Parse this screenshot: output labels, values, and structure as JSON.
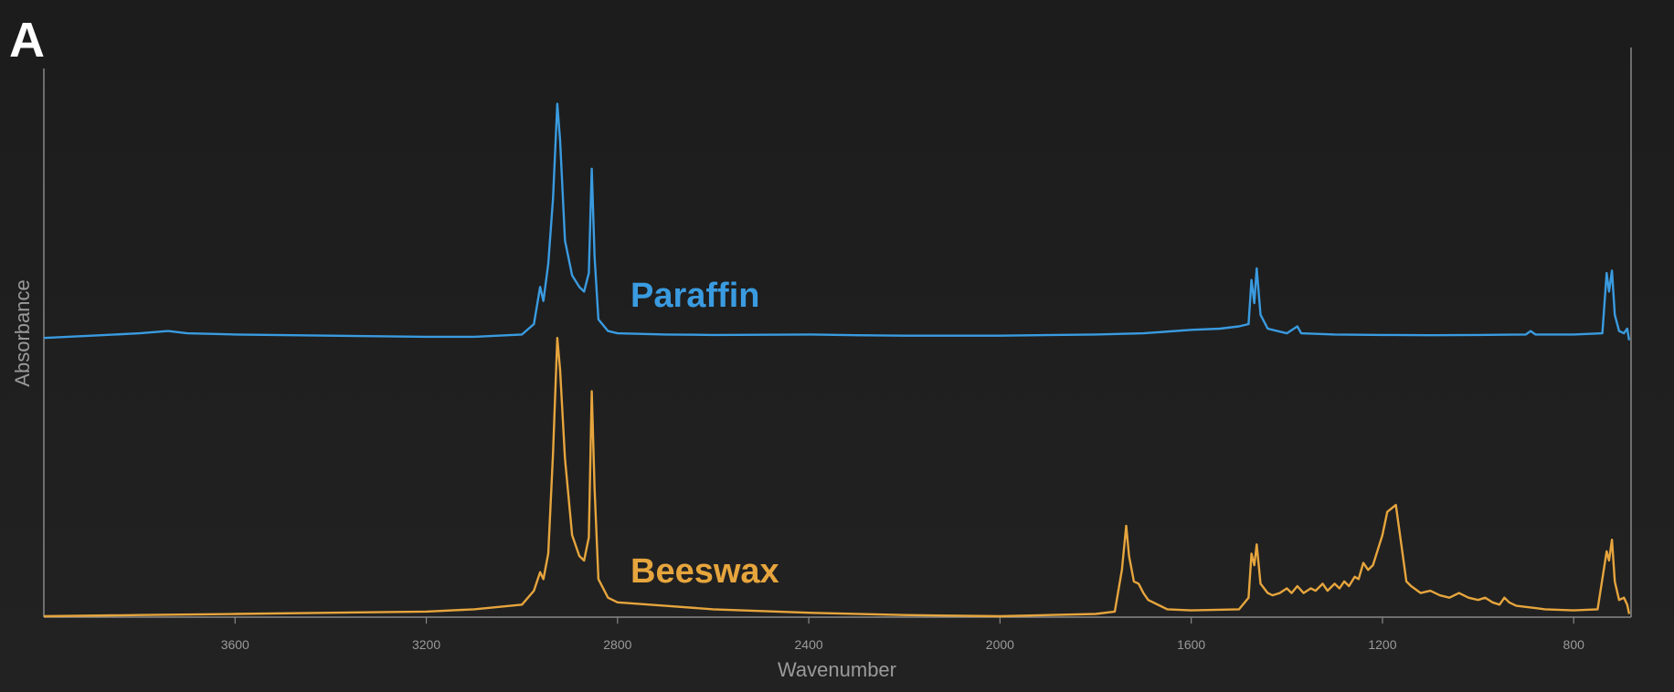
{
  "panel_label": "A",
  "chart_data": {
    "type": "line",
    "title": "",
    "xlabel": "Wavenumber",
    "ylabel": "Absorbance",
    "xlim": [
      4000,
      680
    ],
    "x_reversed": true,
    "x_ticks": [
      3600,
      3200,
      2800,
      2400,
      2000,
      1600,
      1200,
      800
    ],
    "y_ticks_shown": false,
    "grid": false,
    "legend": "inline labels",
    "series": [
      {
        "name": "Paraffin",
        "color": "#3a9be0",
        "points": [
          [
            4000,
            1.2
          ],
          [
            3900,
            1.21
          ],
          [
            3800,
            1.22
          ],
          [
            3740,
            1.23
          ],
          [
            3700,
            1.22
          ],
          [
            3600,
            1.215
          ],
          [
            3400,
            1.21
          ],
          [
            3200,
            1.205
          ],
          [
            3100,
            1.205
          ],
          [
            3000,
            1.215
          ],
          [
            2975,
            1.26
          ],
          [
            2962,
            1.42
          ],
          [
            2955,
            1.36
          ],
          [
            2945,
            1.52
          ],
          [
            2935,
            1.8
          ],
          [
            2926,
            2.21
          ],
          [
            2920,
            2.05
          ],
          [
            2910,
            1.62
          ],
          [
            2895,
            1.47
          ],
          [
            2880,
            1.42
          ],
          [
            2870,
            1.4
          ],
          [
            2860,
            1.48
          ],
          [
            2854,
            1.93
          ],
          [
            2848,
            1.55
          ],
          [
            2840,
            1.28
          ],
          [
            2820,
            1.23
          ],
          [
            2800,
            1.22
          ],
          [
            2700,
            1.215
          ],
          [
            2600,
            1.213
          ],
          [
            2400,
            1.215
          ],
          [
            2300,
            1.212
          ],
          [
            2200,
            1.21
          ],
          [
            2000,
            1.21
          ],
          [
            1800,
            1.215
          ],
          [
            1700,
            1.22
          ],
          [
            1600,
            1.235
          ],
          [
            1540,
            1.24
          ],
          [
            1500,
            1.25
          ],
          [
            1480,
            1.26
          ],
          [
            1474,
            1.45
          ],
          [
            1468,
            1.35
          ],
          [
            1463,
            1.5
          ],
          [
            1455,
            1.3
          ],
          [
            1440,
            1.24
          ],
          [
            1400,
            1.22
          ],
          [
            1378,
            1.25
          ],
          [
            1370,
            1.22
          ],
          [
            1300,
            1.215
          ],
          [
            1200,
            1.213
          ],
          [
            1100,
            1.212
          ],
          [
            1000,
            1.213
          ],
          [
            900,
            1.215
          ],
          [
            890,
            1.23
          ],
          [
            880,
            1.215
          ],
          [
            800,
            1.215
          ],
          [
            740,
            1.22
          ],
          [
            731,
            1.48
          ],
          [
            726,
            1.4
          ],
          [
            720,
            1.49
          ],
          [
            714,
            1.3
          ],
          [
            705,
            1.23
          ],
          [
            695,
            1.22
          ],
          [
            688,
            1.24
          ],
          [
            684,
            1.19
          ]
        ]
      },
      {
        "name": "Beeswax",
        "color": "#e6a53d",
        "points": [
          [
            4000,
            0.0
          ],
          [
            3800,
            0.005
          ],
          [
            3600,
            0.01
          ],
          [
            3400,
            0.015
          ],
          [
            3200,
            0.02
          ],
          [
            3100,
            0.03
          ],
          [
            3000,
            0.05
          ],
          [
            2975,
            0.11
          ],
          [
            2962,
            0.19
          ],
          [
            2955,
            0.16
          ],
          [
            2945,
            0.27
          ],
          [
            2935,
            0.7
          ],
          [
            2926,
            1.2
          ],
          [
            2920,
            1.06
          ],
          [
            2910,
            0.68
          ],
          [
            2895,
            0.35
          ],
          [
            2880,
            0.26
          ],
          [
            2870,
            0.24
          ],
          [
            2860,
            0.34
          ],
          [
            2854,
            0.97
          ],
          [
            2848,
            0.55
          ],
          [
            2840,
            0.16
          ],
          [
            2820,
            0.08
          ],
          [
            2800,
            0.06
          ],
          [
            2700,
            0.045
          ],
          [
            2600,
            0.03
          ],
          [
            2400,
            0.015
          ],
          [
            2200,
            0.005
          ],
          [
            2000,
            0.0
          ],
          [
            1800,
            0.01
          ],
          [
            1760,
            0.02
          ],
          [
            1745,
            0.2
          ],
          [
            1736,
            0.39
          ],
          [
            1730,
            0.26
          ],
          [
            1720,
            0.15
          ],
          [
            1710,
            0.14
          ],
          [
            1700,
            0.1
          ],
          [
            1690,
            0.07
          ],
          [
            1650,
            0.03
          ],
          [
            1600,
            0.025
          ],
          [
            1500,
            0.03
          ],
          [
            1480,
            0.08
          ],
          [
            1474,
            0.27
          ],
          [
            1468,
            0.22
          ],
          [
            1463,
            0.31
          ],
          [
            1455,
            0.14
          ],
          [
            1440,
            0.1
          ],
          [
            1430,
            0.09
          ],
          [
            1415,
            0.1
          ],
          [
            1400,
            0.12
          ],
          [
            1390,
            0.1
          ],
          [
            1378,
            0.13
          ],
          [
            1365,
            0.1
          ],
          [
            1350,
            0.12
          ],
          [
            1340,
            0.11
          ],
          [
            1325,
            0.14
          ],
          [
            1315,
            0.11
          ],
          [
            1300,
            0.14
          ],
          [
            1290,
            0.12
          ],
          [
            1280,
            0.15
          ],
          [
            1270,
            0.13
          ],
          [
            1258,
            0.17
          ],
          [
            1250,
            0.16
          ],
          [
            1240,
            0.23
          ],
          [
            1230,
            0.2
          ],
          [
            1220,
            0.22
          ],
          [
            1200,
            0.35
          ],
          [
            1190,
            0.45
          ],
          [
            1172,
            0.48
          ],
          [
            1160,
            0.3
          ],
          [
            1150,
            0.15
          ],
          [
            1140,
            0.13
          ],
          [
            1120,
            0.1
          ],
          [
            1100,
            0.11
          ],
          [
            1080,
            0.09
          ],
          [
            1060,
            0.08
          ],
          [
            1040,
            0.1
          ],
          [
            1020,
            0.08
          ],
          [
            1000,
            0.07
          ],
          [
            985,
            0.08
          ],
          [
            970,
            0.06
          ],
          [
            955,
            0.05
          ],
          [
            945,
            0.08
          ],
          [
            935,
            0.06
          ],
          [
            920,
            0.045
          ],
          [
            900,
            0.04
          ],
          [
            880,
            0.035
          ],
          [
            860,
            0.03
          ],
          [
            800,
            0.025
          ],
          [
            750,
            0.03
          ],
          [
            731,
            0.28
          ],
          [
            726,
            0.24
          ],
          [
            720,
            0.33
          ],
          [
            714,
            0.15
          ],
          [
            705,
            0.07
          ],
          [
            695,
            0.08
          ],
          [
            688,
            0.05
          ],
          [
            684,
            0.01
          ]
        ]
      }
    ]
  }
}
